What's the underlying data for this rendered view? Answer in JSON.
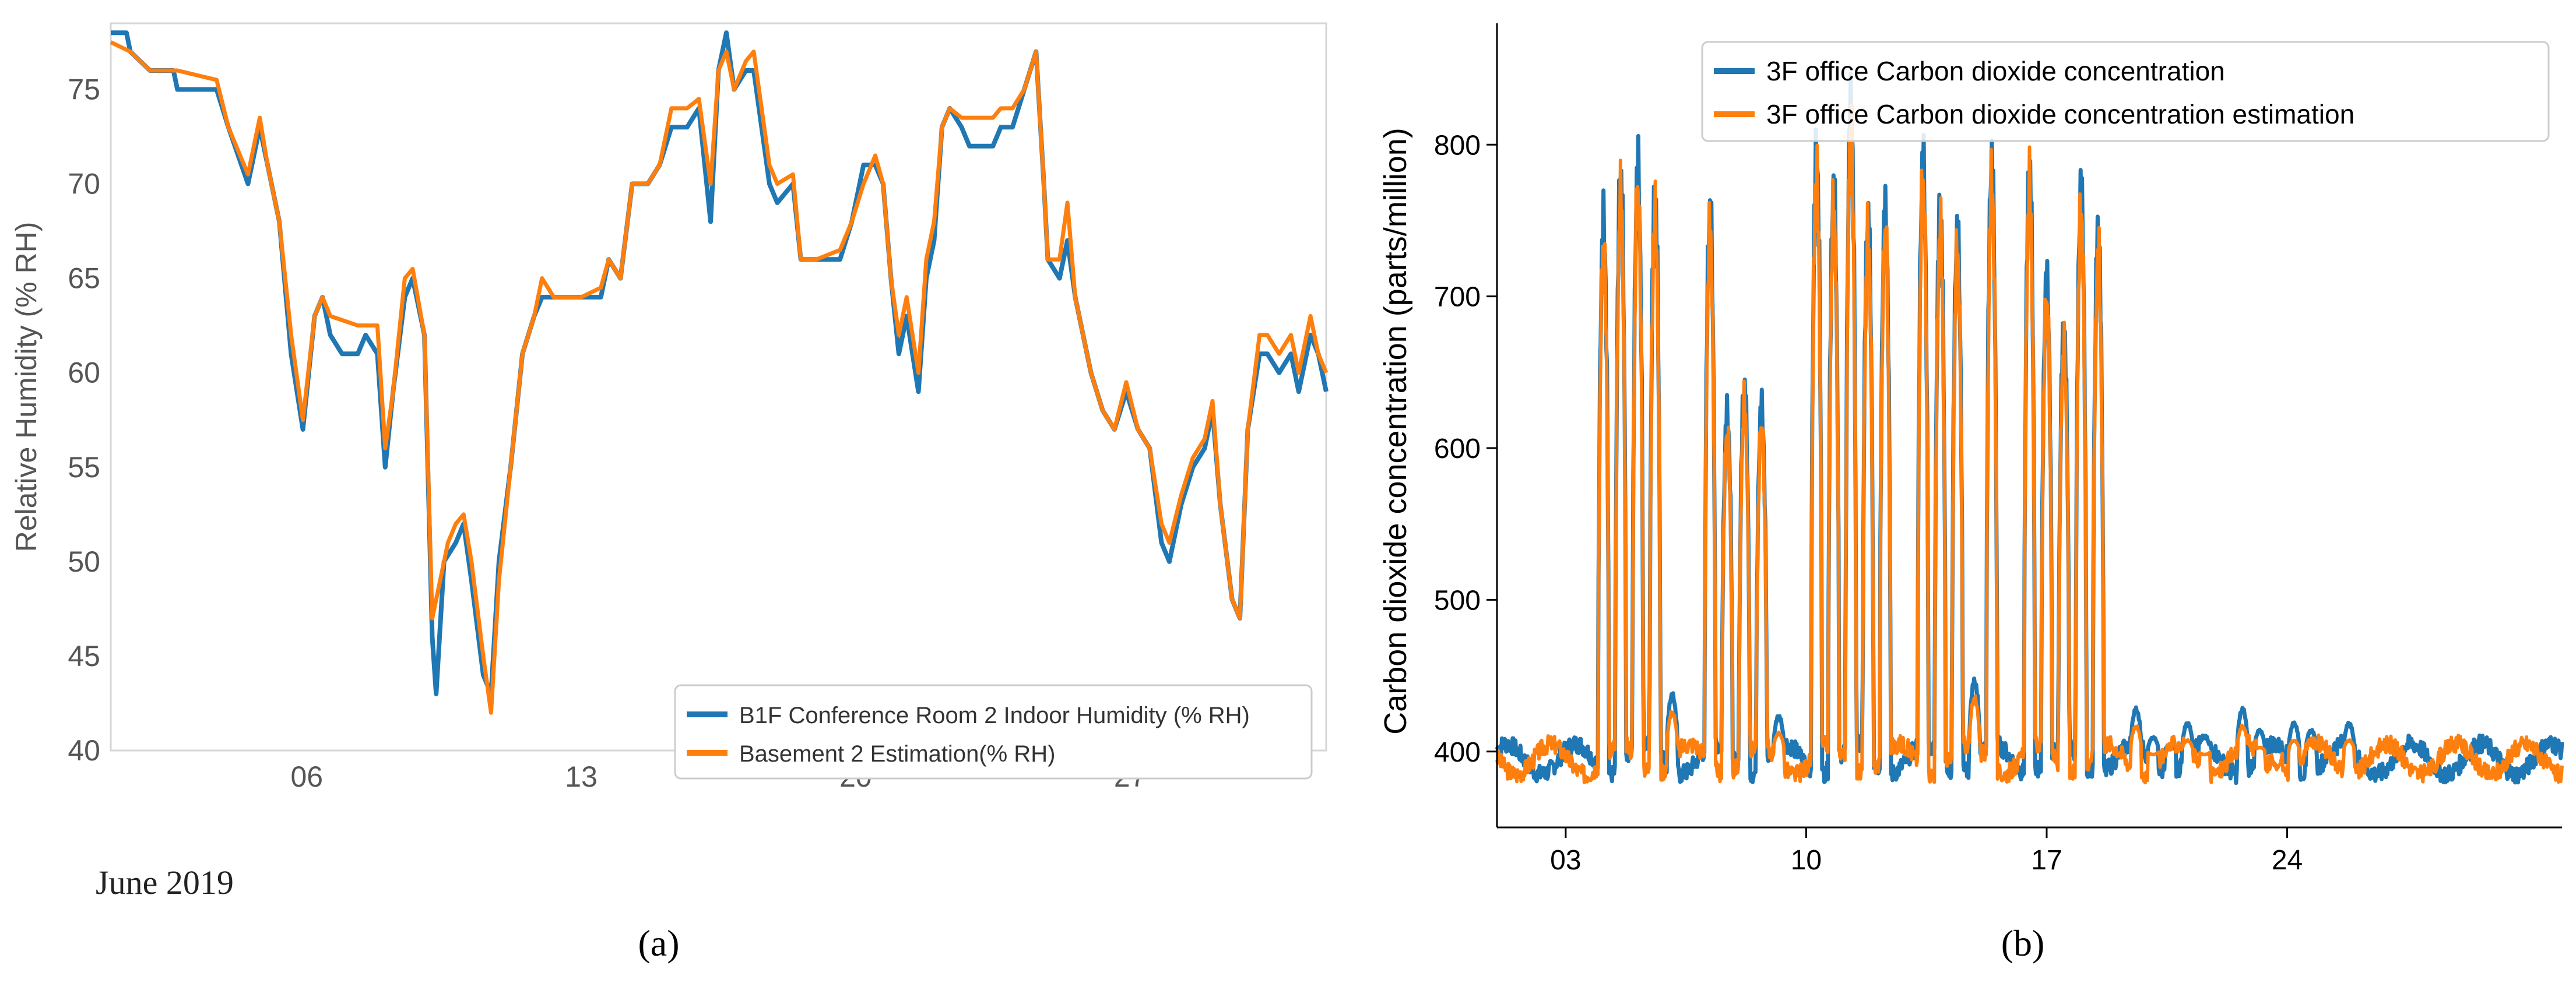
{
  "chart_data": [
    {
      "type": "line",
      "panel_label": "a",
      "title": "",
      "xlabel": "",
      "ylabel": "Relative Humidity (% RH)",
      "ylim": [
        40,
        78.5
      ],
      "yticks": [
        40,
        45,
        50,
        55,
        60,
        65,
        70,
        75
      ],
      "xlim": [
        0,
        31
      ],
      "xtick_positions": [
        5,
        12,
        19,
        26
      ],
      "xtick_labels": [
        "06",
        "13",
        "20",
        "27"
      ],
      "date_label": "June 2019",
      "grid": false,
      "legend_position": "lower-right",
      "series": [
        {
          "name": "B1F Conference Room 2 Indoor Humidity (% RH)",
          "color": "#1f77b4",
          "points": [
            [
              0,
              78
            ],
            [
              0.4,
              78
            ],
            [
              0.5,
              77
            ],
            [
              1,
              76
            ],
            [
              1.6,
              76
            ],
            [
              1.7,
              75
            ],
            [
              2.7,
              75
            ],
            [
              3,
              73
            ],
            [
              3.5,
              70
            ],
            [
              3.8,
              73
            ],
            [
              4,
              71
            ],
            [
              4.3,
              68
            ],
            [
              4.6,
              61
            ],
            [
              4.9,
              57
            ],
            [
              5.2,
              63
            ],
            [
              5.4,
              64
            ],
            [
              5.6,
              62
            ],
            [
              5.9,
              61
            ],
            [
              6.3,
              61
            ],
            [
              6.5,
              62
            ],
            [
              6.8,
              61
            ],
            [
              7,
              55
            ],
            [
              7.2,
              59
            ],
            [
              7.5,
              64
            ],
            [
              7.7,
              65
            ],
            [
              8,
              62
            ],
            [
              8.2,
              46
            ],
            [
              8.3,
              43
            ],
            [
              8.5,
              50
            ],
            [
              8.8,
              51
            ],
            [
              9,
              52
            ],
            [
              9.2,
              49
            ],
            [
              9.5,
              44
            ],
            [
              9.7,
              43
            ],
            [
              9.9,
              50
            ],
            [
              10.2,
              55
            ],
            [
              10.5,
              61
            ],
            [
              10.8,
              63
            ],
            [
              11,
              64
            ],
            [
              11.3,
              64
            ],
            [
              12,
              64
            ],
            [
              12.5,
              64
            ],
            [
              12.7,
              66
            ],
            [
              13,
              65
            ],
            [
              13.3,
              70
            ],
            [
              13.7,
              70
            ],
            [
              14,
              71
            ],
            [
              14.3,
              73
            ],
            [
              14.7,
              73
            ],
            [
              15,
              74
            ],
            [
              15.3,
              68
            ],
            [
              15.5,
              76
            ],
            [
              15.7,
              78
            ],
            [
              15.9,
              75
            ],
            [
              16.2,
              76
            ],
            [
              16.4,
              76
            ],
            [
              16.6,
              73
            ],
            [
              16.8,
              70
            ],
            [
              17,
              69
            ],
            [
              17.4,
              70
            ],
            [
              17.6,
              66
            ],
            [
              18,
              66
            ],
            [
              18.6,
              66
            ],
            [
              18.9,
              68
            ],
            [
              19.2,
              71
            ],
            [
              19.5,
              71
            ],
            [
              19.7,
              70
            ],
            [
              19.9,
              65
            ],
            [
              20.1,
              61
            ],
            [
              20.3,
              63
            ],
            [
              20.6,
              59
            ],
            [
              20.8,
              65
            ],
            [
              21,
              67
            ],
            [
              21.2,
              73
            ],
            [
              21.4,
              74
            ],
            [
              21.7,
              73
            ],
            [
              21.9,
              72
            ],
            [
              22.5,
              72
            ],
            [
              22.7,
              73
            ],
            [
              23,
              73
            ],
            [
              23.3,
              75
            ],
            [
              23.6,
              77
            ],
            [
              23.8,
              70
            ],
            [
              23.9,
              66
            ],
            [
              24.2,
              65
            ],
            [
              24.4,
              67
            ],
            [
              24.6,
              64
            ],
            [
              24.8,
              62
            ],
            [
              25,
              60
            ],
            [
              25.3,
              58
            ],
            [
              25.6,
              57
            ],
            [
              25.9,
              59
            ],
            [
              26.2,
              57
            ],
            [
              26.5,
              56
            ],
            [
              26.8,
              51
            ],
            [
              27,
              50
            ],
            [
              27.3,
              53
            ],
            [
              27.6,
              55
            ],
            [
              27.9,
              56
            ],
            [
              28.1,
              58
            ],
            [
              28.3,
              53
            ],
            [
              28.6,
              48
            ],
            [
              28.8,
              47
            ],
            [
              29,
              57
            ],
            [
              29.3,
              61
            ],
            [
              29.5,
              61
            ],
            [
              29.8,
              60
            ],
            [
              30.1,
              61
            ],
            [
              30.3,
              59
            ],
            [
              30.6,
              62
            ],
            [
              30.8,
              61
            ],
            [
              31,
              59
            ]
          ]
        },
        {
          "name": "Basement 2 Estimation(% RH)",
          "color": "#ff7f0e",
          "points": [
            [
              0,
              77.5
            ],
            [
              0.5,
              77
            ],
            [
              1,
              76
            ],
            [
              1.7,
              76
            ],
            [
              2.7,
              75.5
            ],
            [
              3,
              73
            ],
            [
              3.5,
              70.5
            ],
            [
              3.8,
              73.5
            ],
            [
              4,
              71
            ],
            [
              4.3,
              68
            ],
            [
              4.6,
              62
            ],
            [
              4.9,
              57.5
            ],
            [
              5.2,
              63
            ],
            [
              5.4,
              64
            ],
            [
              5.6,
              63
            ],
            [
              6.3,
              62.5
            ],
            [
              6.8,
              62.5
            ],
            [
              7,
              56
            ],
            [
              7.2,
              59
            ],
            [
              7.5,
              65
            ],
            [
              7.7,
              65.5
            ],
            [
              8,
              62
            ],
            [
              8.2,
              47
            ],
            [
              8.4,
              49
            ],
            [
              8.6,
              51
            ],
            [
              8.8,
              52
            ],
            [
              9,
              52.5
            ],
            [
              9.2,
              50
            ],
            [
              9.5,
              45
            ],
            [
              9.7,
              42
            ],
            [
              9.9,
              49
            ],
            [
              10.2,
              55
            ],
            [
              10.5,
              61
            ],
            [
              10.8,
              63
            ],
            [
              11,
              65
            ],
            [
              11.3,
              64
            ],
            [
              12,
              64
            ],
            [
              12.5,
              64.5
            ],
            [
              12.7,
              66
            ],
            [
              13,
              65
            ],
            [
              13.3,
              70
            ],
            [
              13.7,
              70
            ],
            [
              14,
              71
            ],
            [
              14.3,
              74
            ],
            [
              14.7,
              74
            ],
            [
              15,
              74.5
            ],
            [
              15.3,
              70
            ],
            [
              15.5,
              76
            ],
            [
              15.7,
              77
            ],
            [
              15.9,
              75
            ],
            [
              16.2,
              76.5
            ],
            [
              16.4,
              77
            ],
            [
              16.6,
              74
            ],
            [
              16.8,
              71
            ],
            [
              17,
              70
            ],
            [
              17.4,
              70.5
            ],
            [
              17.6,
              66
            ],
            [
              18,
              66
            ],
            [
              18.6,
              66.5
            ],
            [
              18.9,
              68
            ],
            [
              19.2,
              70
            ],
            [
              19.5,
              71.5
            ],
            [
              19.7,
              70
            ],
            [
              19.9,
              65
            ],
            [
              20.1,
              62
            ],
            [
              20.3,
              64
            ],
            [
              20.6,
              60
            ],
            [
              20.8,
              66
            ],
            [
              21,
              68
            ],
            [
              21.2,
              73
            ],
            [
              21.4,
              74
            ],
            [
              21.7,
              73.5
            ],
            [
              22.5,
              73.5
            ],
            [
              22.7,
              74
            ],
            [
              23,
              74
            ],
            [
              23.3,
              75
            ],
            [
              23.6,
              77
            ],
            [
              23.8,
              70
            ],
            [
              23.9,
              66
            ],
            [
              24.2,
              66
            ],
            [
              24.4,
              69
            ],
            [
              24.6,
              64
            ],
            [
              24.8,
              62
            ],
            [
              25,
              60
            ],
            [
              25.3,
              58
            ],
            [
              25.6,
              57
            ],
            [
              25.9,
              59.5
            ],
            [
              26.2,
              57
            ],
            [
              26.5,
              56
            ],
            [
              26.8,
              52
            ],
            [
              27,
              51
            ],
            [
              27.3,
              53.5
            ],
            [
              27.6,
              55.5
            ],
            [
              27.9,
              56.5
            ],
            [
              28.1,
              58.5
            ],
            [
              28.3,
              53
            ],
            [
              28.6,
              48
            ],
            [
              28.8,
              47
            ],
            [
              29,
              57
            ],
            [
              29.3,
              62
            ],
            [
              29.5,
              62
            ],
            [
              29.8,
              61
            ],
            [
              30.1,
              62
            ],
            [
              30.3,
              60
            ],
            [
              30.6,
              63
            ],
            [
              30.8,
              61
            ],
            [
              31,
              60
            ]
          ]
        }
      ]
    },
    {
      "type": "line",
      "panel_label": "b",
      "title": "",
      "xlabel": "",
      "ylabel": "Carbon dioxide concentration (parts/million)",
      "ylim": [
        350,
        880
      ],
      "yticks": [
        400,
        500,
        600,
        700,
        800
      ],
      "xlim": [
        0,
        31
      ],
      "xtick_positions": [
        2,
        9,
        16,
        23
      ],
      "xtick_labels": [
        "03",
        "10",
        "17",
        "24"
      ],
      "grid": false,
      "legend_position": "top-right",
      "workday_centers": [
        3.1,
        3.6,
        4.1,
        4.6,
        5.1,
        6.2,
        6.7,
        7.2,
        7.7,
        8.2,
        9.3,
        9.8,
        10.3,
        10.8,
        11.3,
        12.4,
        12.9,
        13.4,
        13.9,
        14.4,
        15.5,
        16.0,
        16.5,
        17.0,
        17.5,
        18.6,
        19.1,
        19.6,
        20.1,
        20.6,
        21.7,
        22.2,
        22.7,
        23.2,
        23.7,
        24.8
      ],
      "workday_peaks": [
        775,
        810,
        815,
        795,
        440,
        785,
        640,
        660,
        645,
        425,
        825,
        800,
        860,
        780,
        785,
        820,
        785,
        770,
        450,
        820,
        815,
        735,
        700,
        800,
        770,
        430,
        410,
        405,
        420,
        410,
        430,
        415,
        400,
        420,
        415,
        420
      ],
      "series": [
        {
          "name": "3F office Carbon dioxide concentration",
          "color": "#1f77b4",
          "baseline": [
            400,
            410,
            385,
            415,
            380
          ]
        },
        {
          "name": "3F office Carbon dioxide concentration estimation",
          "color": "#ff7f0e",
          "baseline": [
            405,
            412,
            390,
            418,
            385
          ]
        }
      ]
    }
  ],
  "captions": [
    "(a)",
    "(b)"
  ]
}
